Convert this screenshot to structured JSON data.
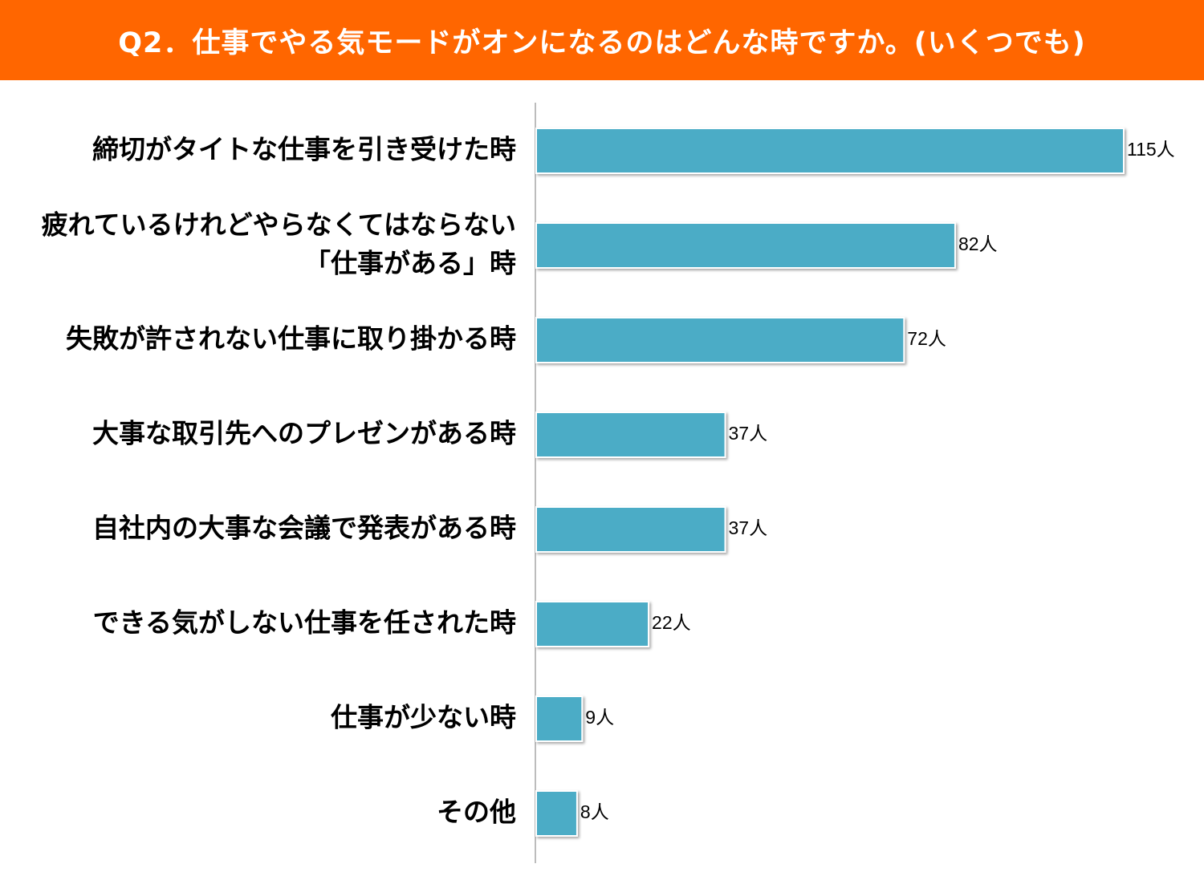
{
  "title": "Q2．仕事でやる気モードがオンになるのはどんな時ですか。(いくつでも)",
  "colors": {
    "header_bg": "#ff6600",
    "header_text": "#ffffff",
    "bar": "#4bacc6",
    "bar_stroke": "#ffffff",
    "axis": "#a6a6a6"
  },
  "chart_data": {
    "type": "bar",
    "orientation": "horizontal",
    "categories": [
      "締切がタイトな仕事を引き受けた時",
      "疲れているけれどやらなくてはならない「仕事がある」時",
      "失敗が許されない仕事に取り掛かる時",
      "大事な取引先へのプレゼンがある時",
      "自社内の大事な会議で発表がある時",
      "できる気がしない仕事を任された時",
      "仕事が少ない時",
      "その他"
    ],
    "category_lines": [
      [
        "締切がタイトな仕事を引き受けた時"
      ],
      [
        "疲れているけれどやらなくてはならない",
        "「仕事がある」時"
      ],
      [
        "失敗が許されない仕事に取り掛かる時"
      ],
      [
        "大事な取引先へのプレゼンがある時"
      ],
      [
        "自社内の大事な会議で発表がある時"
      ],
      [
        "できる気がしない仕事を任された時"
      ],
      [
        "仕事が少ない時"
      ],
      [
        "その他"
      ]
    ],
    "values": [
      115,
      82,
      72,
      37,
      37,
      22,
      9,
      8
    ],
    "data_labels": [
      "115人",
      "82人",
      "72人",
      "37人",
      "37人",
      "22人",
      "9人",
      "8人"
    ],
    "unit": "人",
    "xlim": [
      0,
      115
    ],
    "grid": false,
    "legend": "none"
  }
}
